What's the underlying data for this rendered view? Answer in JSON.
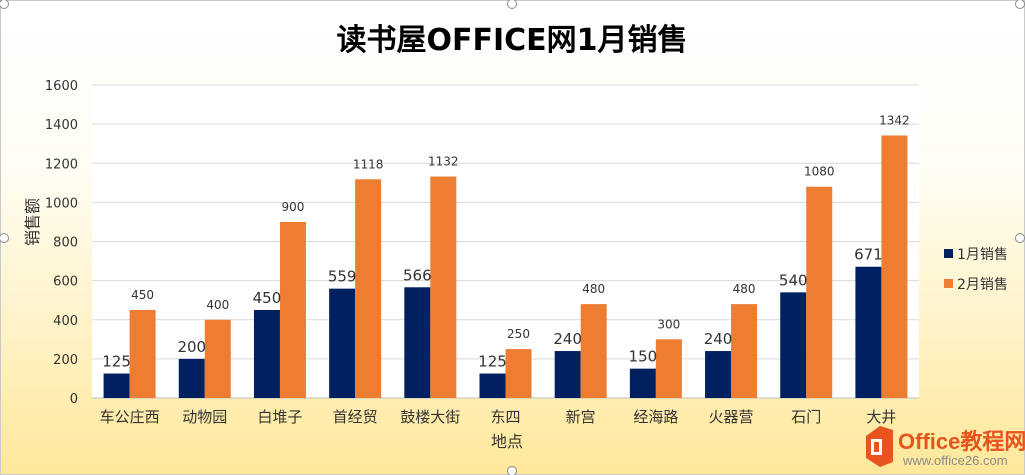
{
  "chart_data": {
    "type": "bar",
    "title": "读书屋OFFICE网1月销售",
    "xlabel": "地点",
    "ylabel": "销售额",
    "ylim": [
      0,
      1600
    ],
    "yticks": [
      "0",
      "200",
      "400",
      "600",
      "800",
      "1000",
      "1200",
      "1400",
      "1600"
    ],
    "grid": true,
    "legend_position": "right",
    "categories": [
      "车公庄西",
      "动物园",
      "白堆子",
      "首经贸",
      "鼓楼大街",
      "东四",
      "新宫",
      "经海路",
      "火器营",
      "石门",
      "大井"
    ],
    "series": [
      {
        "name": "1月销售",
        "color": "#002060",
        "values": [
          125,
          200,
          450,
          559,
          566,
          125,
          240,
          150,
          240,
          540,
          671
        ]
      },
      {
        "name": "2月销售",
        "color": "#ED7D31",
        "values": [
          450,
          400,
          900,
          1118,
          1132,
          250,
          480,
          300,
          480,
          1080,
          1342
        ]
      }
    ]
  },
  "watermark": {
    "logo_icon": "office-logo-icon",
    "brand": "Office教程网",
    "url": "www.office26.com",
    "colors": {
      "logo": "#e8541e",
      "url": "#8a8a8a"
    }
  }
}
